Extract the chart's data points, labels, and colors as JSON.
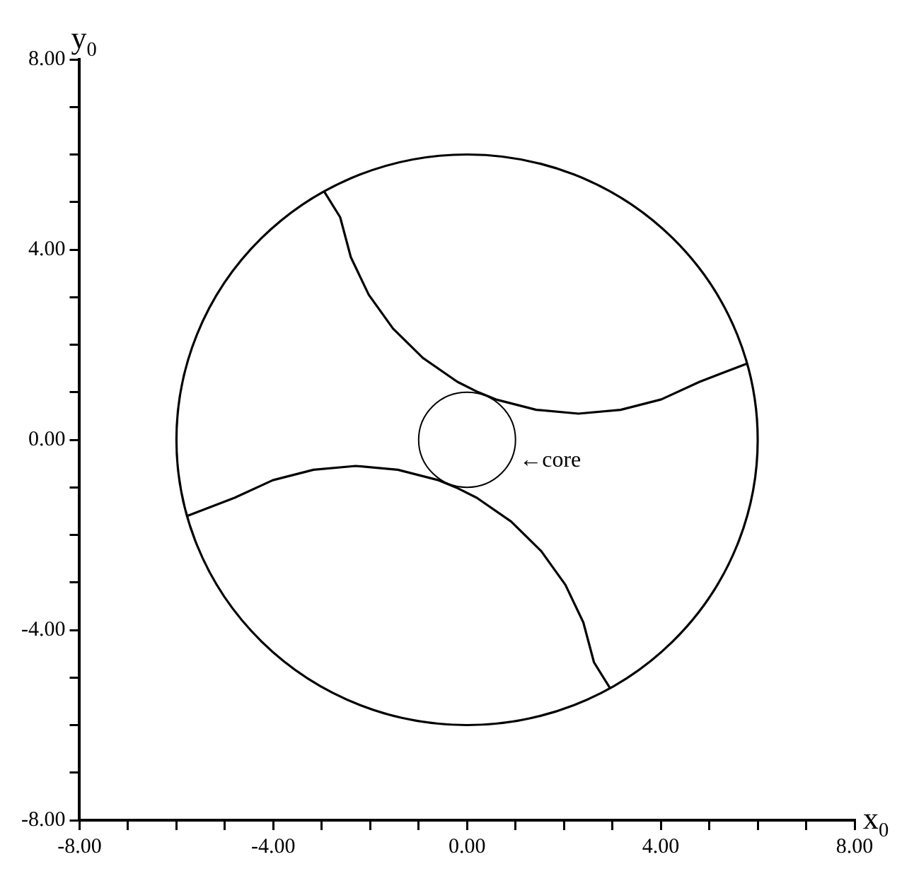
{
  "chart_data": {
    "type": "line",
    "xlabel": "x$_{0}$",
    "ylabel": "y$_{0}$",
    "xlim": [
      -8,
      8
    ],
    "ylim": [
      -8,
      8
    ],
    "xticks": [
      {
        "value": -8,
        "label": "-8.00"
      },
      {
        "value": -7,
        "label": null
      },
      {
        "value": -6,
        "label": null
      },
      {
        "value": -5,
        "label": null
      },
      {
        "value": -4,
        "label": "-4.00"
      },
      {
        "value": -3,
        "label": null
      },
      {
        "value": -2,
        "label": null
      },
      {
        "value": -1,
        "label": null
      },
      {
        "value": 0,
        "label": "0.00"
      },
      {
        "value": 1,
        "label": null
      },
      {
        "value": 2,
        "label": null
      },
      {
        "value": 3,
        "label": null
      },
      {
        "value": 4,
        "label": "4.00"
      },
      {
        "value": 5,
        "label": null
      },
      {
        "value": 6,
        "label": null
      },
      {
        "value": 7,
        "label": null
      },
      {
        "value": 8,
        "label": "8.00"
      }
    ],
    "yticks": [
      {
        "value": -8,
        "label": "-8.00"
      },
      {
        "value": -7,
        "label": null
      },
      {
        "value": -6,
        "label": null
      },
      {
        "value": -5,
        "label": null
      },
      {
        "value": -4,
        "label": "-4.00"
      },
      {
        "value": -3,
        "label": null
      },
      {
        "value": -2,
        "label": null
      },
      {
        "value": -1,
        "label": null
      },
      {
        "value": 0,
        "label": "0.00"
      },
      {
        "value": 1,
        "label": null
      },
      {
        "value": 2,
        "label": null
      },
      {
        "value": 3,
        "label": null
      },
      {
        "value": 4,
        "label": "4.00"
      },
      {
        "value": 5,
        "label": null
      },
      {
        "value": 6,
        "label": null
      },
      {
        "value": 7,
        "label": null
      },
      {
        "value": 8,
        "label": "8.00"
      }
    ],
    "grid": false,
    "legend": false,
    "marker": "none",
    "line_style": "solid",
    "series": [
      {
        "color": "#000000",
        "x": [
          -2.95,
          -2.62,
          -2.4,
          -2.03,
          -1.53,
          -0.91,
          -0.2,
          0.19,
          0.59,
          1.43,
          2.3,
          3.17,
          4.01,
          4.8,
          5.77
        ],
        "values": [
          5.22,
          4.68,
          3.84,
          3.05,
          2.34,
          1.72,
          1.22,
          1.02,
          0.85,
          0.63,
          0.55,
          0.63,
          0.85,
          1.22,
          1.6
        ]
      },
      {
        "color": "#000000",
        "x": [
          -5.77,
          -4.8,
          -4.01,
          -3.17,
          -2.3,
          -1.43,
          -0.59,
          -0.19,
          0.2,
          0.91,
          1.53,
          2.03,
          2.4,
          2.62,
          2.95
        ],
        "values": [
          -1.6,
          -1.22,
          -0.85,
          -0.63,
          -0.55,
          -0.63,
          -0.85,
          -1.02,
          -1.22,
          -1.72,
          -2.34,
          -3.05,
          -3.84,
          -4.68,
          -5.22
        ]
      }
    ],
    "annotations": [
      "←core"
    ]
  }
}
